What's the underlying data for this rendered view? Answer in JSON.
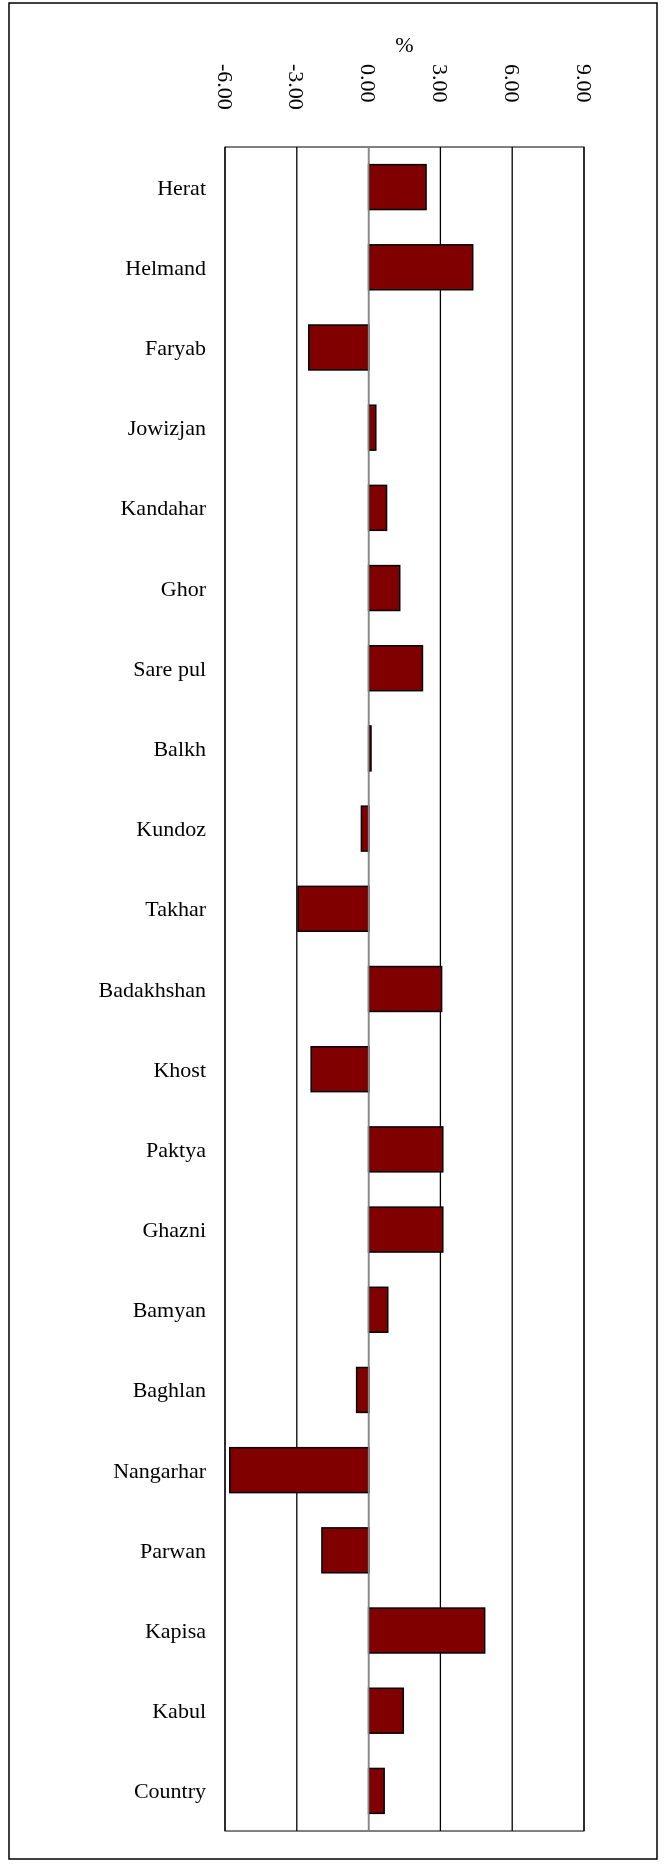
{
  "chart_data": {
    "type": "bar",
    "orientation": "horizontal",
    "xlabel": "%",
    "categories": [
      "Herat",
      "Helmand",
      "Faryab",
      "Jowizjan",
      "Kandahar",
      "Ghor",
      "Sare pul",
      "Balkh",
      "Kundoz",
      "Takhar",
      "Badakhshan",
      "Khost",
      "Paktya",
      "Ghazni",
      "Bamyan",
      "Baghlan",
      "Nangarhar",
      "Parwan",
      "Kapisa",
      "Kabul",
      "Country"
    ],
    "values": [
      2.4,
      4.35,
      -2.5,
      0.3,
      0.75,
      1.3,
      2.25,
      0.1,
      -0.3,
      -2.95,
      3.05,
      -2.4,
      3.1,
      3.1,
      0.8,
      -0.5,
      -5.8,
      -1.95,
      4.85,
      1.45,
      0.65
    ],
    "color": "#800000",
    "xlim": [
      -6,
      9
    ],
    "xticks": [
      {
        "value": -6,
        "label": "-6.00"
      },
      {
        "value": -3,
        "label": "-3.00"
      },
      {
        "value": 0,
        "label": "0.00"
      },
      {
        "value": 3,
        "label": "3.00"
      },
      {
        "value": 6,
        "label": "6.00"
      },
      {
        "value": 9,
        "label": "9.00"
      }
    ],
    "grid": "x"
  }
}
